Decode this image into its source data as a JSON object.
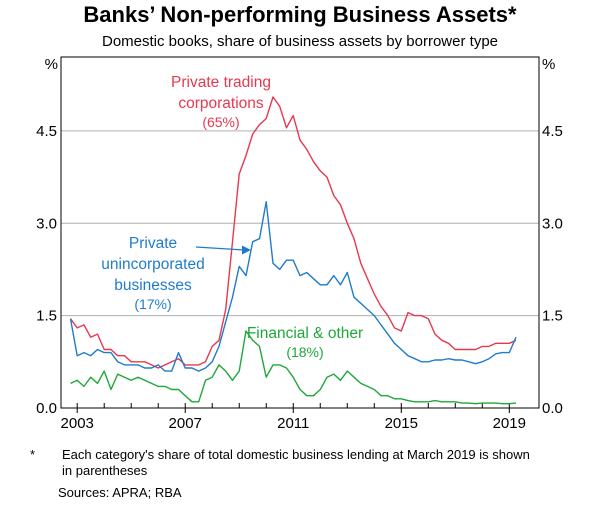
{
  "title": "Banks’ Non-performing Business Assets*",
  "subtitle": "Domestic books, share of business assets by borrower type",
  "footnote": {
    "marker": "*",
    "text": "Each category's share of total domestic business lending at March 2019 is shown in parentheses"
  },
  "sources": "Sources:  APRA; RBA",
  "chart_data": {
    "type": "line",
    "ylabel_left": "%",
    "ylabel_right": "%",
    "ylim": [
      0,
      5.7
    ],
    "yticks": [
      "0.0",
      "1.5",
      "3.0",
      "4.5"
    ],
    "xticks": [
      "2003",
      "2007",
      "2011",
      "2015",
      "2019"
    ],
    "grid": true,
    "series": [
      {
        "name": "Private trading corporations",
        "name_lines": [
          "Private trading",
          "corporations"
        ],
        "share": "(65%)",
        "color": "#e8384f",
        "x": [
          2002.75,
          2003.0,
          2003.25,
          2003.5,
          2003.75,
          2004.0,
          2004.25,
          2004.5,
          2004.75,
          2005.0,
          2005.25,
          2005.5,
          2005.75,
          2006.0,
          2006.25,
          2006.5,
          2006.75,
          2007.0,
          2007.25,
          2007.5,
          2007.75,
          2008.0,
          2008.25,
          2008.5,
          2008.75,
          2009.0,
          2009.25,
          2009.5,
          2009.75,
          2010.0,
          2010.25,
          2010.5,
          2010.75,
          2011.0,
          2011.25,
          2011.5,
          2011.75,
          2012.0,
          2012.25,
          2012.5,
          2012.75,
          2013.0,
          2013.25,
          2013.5,
          2013.75,
          2014.0,
          2014.25,
          2014.5,
          2014.75,
          2015.0,
          2015.25,
          2015.5,
          2015.75,
          2016.0,
          2016.25,
          2016.5,
          2016.75,
          2017.0,
          2017.25,
          2017.5,
          2017.75,
          2018.0,
          2018.25,
          2018.5,
          2018.75,
          2019.0,
          2019.25
        ],
        "y": [
          1.45,
          1.3,
          1.35,
          1.15,
          1.2,
          0.95,
          0.95,
          0.85,
          0.85,
          0.75,
          0.75,
          0.75,
          0.7,
          0.65,
          0.7,
          0.75,
          0.8,
          0.7,
          0.7,
          0.7,
          0.75,
          1.0,
          1.1,
          1.6,
          2.7,
          3.8,
          4.1,
          4.45,
          4.6,
          4.7,
          5.05,
          4.9,
          4.55,
          4.75,
          4.35,
          4.2,
          4.0,
          3.85,
          3.75,
          3.45,
          3.3,
          3.0,
          2.75,
          2.35,
          2.1,
          1.85,
          1.65,
          1.5,
          1.3,
          1.25,
          1.55,
          1.5,
          1.5,
          1.45,
          1.2,
          1.1,
          1.05,
          0.95,
          0.95,
          0.95,
          0.95,
          1.0,
          1.0,
          1.05,
          1.05,
          1.05,
          1.1
        ]
      },
      {
        "name": "Private unincorporated businesses",
        "name_lines": [
          "Private",
          "unincorporated",
          "businesses"
        ],
        "share": "(17%)",
        "color": "#1f7ccc",
        "x": [
          2002.75,
          2003.0,
          2003.25,
          2003.5,
          2003.75,
          2004.0,
          2004.25,
          2004.5,
          2004.75,
          2005.0,
          2005.25,
          2005.5,
          2005.75,
          2006.0,
          2006.25,
          2006.5,
          2006.75,
          2007.0,
          2007.25,
          2007.5,
          2007.75,
          2008.0,
          2008.25,
          2008.5,
          2008.75,
          2009.0,
          2009.25,
          2009.5,
          2009.75,
          2010.0,
          2010.25,
          2010.5,
          2010.75,
          2011.0,
          2011.25,
          2011.5,
          2011.75,
          2012.0,
          2012.25,
          2012.5,
          2012.75,
          2013.0,
          2013.25,
          2013.5,
          2013.75,
          2014.0,
          2014.25,
          2014.5,
          2014.75,
          2015.0,
          2015.25,
          2015.5,
          2015.75,
          2016.0,
          2016.25,
          2016.5,
          2016.75,
          2017.0,
          2017.25,
          2017.5,
          2017.75,
          2018.0,
          2018.25,
          2018.5,
          2018.75,
          2019.0,
          2019.25
        ],
        "y": [
          1.45,
          0.85,
          0.9,
          0.85,
          0.95,
          0.9,
          0.9,
          0.75,
          0.7,
          0.7,
          0.7,
          0.65,
          0.65,
          0.7,
          0.6,
          0.6,
          0.9,
          0.65,
          0.65,
          0.6,
          0.65,
          0.75,
          1.0,
          1.4,
          1.8,
          2.3,
          2.15,
          2.7,
          2.75,
          3.35,
          2.35,
          2.25,
          2.4,
          2.4,
          2.15,
          2.2,
          2.1,
          2.0,
          2.0,
          2.15,
          2.0,
          2.2,
          1.8,
          1.7,
          1.6,
          1.5,
          1.35,
          1.2,
          1.05,
          0.95,
          0.85,
          0.8,
          0.75,
          0.75,
          0.78,
          0.78,
          0.8,
          0.78,
          0.78,
          0.75,
          0.72,
          0.75,
          0.8,
          0.88,
          0.9,
          0.9,
          1.15
        ]
      },
      {
        "name": "Financial & other",
        "name_lines": [
          "Financial & other"
        ],
        "share": "(18%)",
        "color": "#1fa83a",
        "x": [
          2002.75,
          2003.0,
          2003.25,
          2003.5,
          2003.75,
          2004.0,
          2004.25,
          2004.5,
          2004.75,
          2005.0,
          2005.25,
          2005.5,
          2005.75,
          2006.0,
          2006.25,
          2006.5,
          2006.75,
          2007.0,
          2007.25,
          2007.5,
          2007.75,
          2008.0,
          2008.25,
          2008.5,
          2008.75,
          2009.0,
          2009.25,
          2009.5,
          2009.75,
          2010.0,
          2010.25,
          2010.5,
          2010.75,
          2011.0,
          2011.25,
          2011.5,
          2011.75,
          2012.0,
          2012.25,
          2012.5,
          2012.75,
          2013.0,
          2013.25,
          2013.5,
          2013.75,
          2014.0,
          2014.25,
          2014.5,
          2014.75,
          2015.0,
          2015.25,
          2015.5,
          2015.75,
          2016.0,
          2016.25,
          2016.5,
          2016.75,
          2017.0,
          2017.25,
          2017.5,
          2017.75,
          2018.0,
          2018.25,
          2018.5,
          2018.75,
          2019.0,
          2019.25
        ],
        "y": [
          0.4,
          0.45,
          0.35,
          0.5,
          0.4,
          0.6,
          0.3,
          0.55,
          0.5,
          0.45,
          0.5,
          0.45,
          0.4,
          0.35,
          0.35,
          0.3,
          0.3,
          0.2,
          0.1,
          0.1,
          0.45,
          0.5,
          0.7,
          0.6,
          0.45,
          0.6,
          1.25,
          1.1,
          1.0,
          0.5,
          0.7,
          0.7,
          0.65,
          0.5,
          0.3,
          0.2,
          0.2,
          0.3,
          0.5,
          0.55,
          0.45,
          0.6,
          0.5,
          0.4,
          0.35,
          0.3,
          0.2,
          0.2,
          0.15,
          0.15,
          0.12,
          0.1,
          0.1,
          0.1,
          0.12,
          0.1,
          0.1,
          0.1,
          0.08,
          0.08,
          0.07,
          0.08,
          0.08,
          0.08,
          0.07,
          0.07,
          0.08
        ]
      }
    ]
  }
}
